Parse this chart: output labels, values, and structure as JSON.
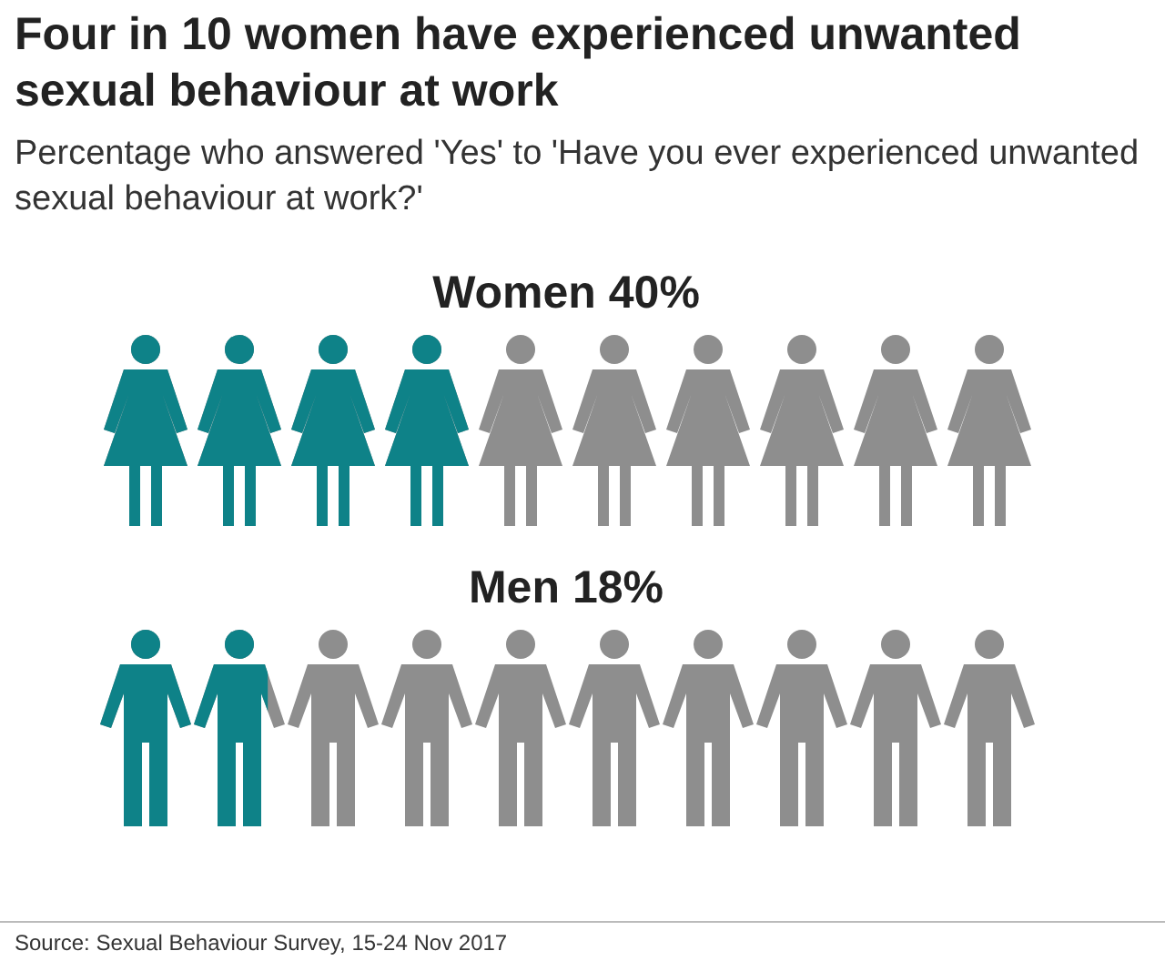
{
  "chart_data": {
    "type": "other",
    "title": "Four in 10 women have experienced unwanted sexual behaviour at work",
    "subtitle": "Percentage who answered 'Yes' to 'Have you ever experienced unwanted sexual behaviour at work?'",
    "categories": [
      "Women",
      "Men"
    ],
    "values": [
      40,
      18
    ],
    "value_labels": [
      "40%",
      "18%"
    ],
    "color": "#0e8288",
    "annotations": [
      "Source: Sexual Behaviour Survey, 15-24 Nov 2017"
    ]
  }
}
